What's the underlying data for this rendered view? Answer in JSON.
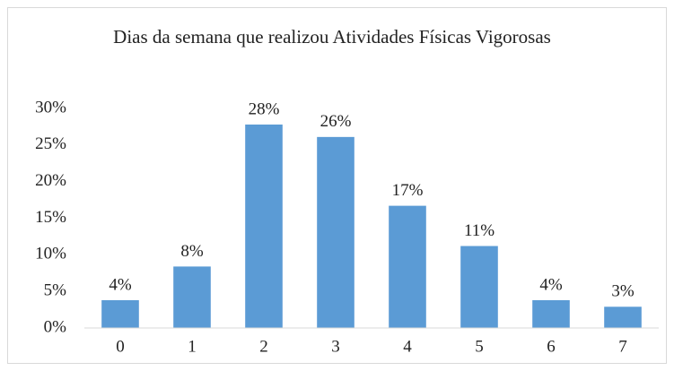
{
  "chart_data": {
    "type": "bar",
    "title": "Dias da semana que realizou Atividades Físicas Vigorosas",
    "categories": [
      "0",
      "1",
      "2",
      "3",
      "4",
      "5",
      "6",
      "7"
    ],
    "values": [
      3.8,
      8.4,
      27.8,
      26.1,
      16.7,
      11.2,
      3.8,
      2.9
    ],
    "value_labels": [
      "4%",
      "8%",
      "28%",
      "26%",
      "17%",
      "11%",
      "4%",
      "3%"
    ],
    "color": "#5b9bd5",
    "ylim": [
      0,
      30
    ],
    "yticks": [
      {
        "value": 0,
        "label": "0%"
      },
      {
        "value": 5,
        "label": "5%"
      },
      {
        "value": 10,
        "label": "10%"
      },
      {
        "value": 15,
        "label": "15%"
      },
      {
        "value": 20,
        "label": "20%"
      },
      {
        "value": 25,
        "label": "25%"
      },
      {
        "value": 30,
        "label": "30%"
      }
    ],
    "grid": false
  }
}
